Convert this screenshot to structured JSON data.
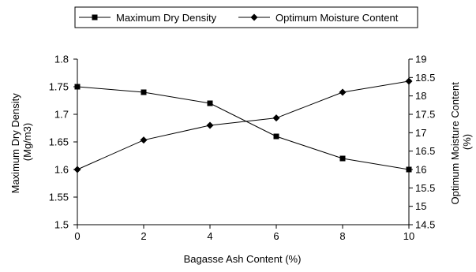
{
  "chart_data": {
    "type": "line",
    "x": [
      0,
      2,
      4,
      6,
      8,
      10
    ],
    "xlabel": "Bagasse Ash Content (%)",
    "xlim": [
      0,
      10
    ],
    "xticks": [
      "0",
      "2",
      "4",
      "6",
      "8",
      "10"
    ],
    "ylabel_left": [
      "Maximum Dry Density",
      "(Mg/m3)"
    ],
    "ylim_left": [
      1.5,
      1.8
    ],
    "yticks_left": [
      "1.5",
      "1.55",
      "1.6",
      "1.65",
      "1.7",
      "1.75",
      "1.8"
    ],
    "ylabel_right": [
      "Optimum Moisture Content",
      "(%)"
    ],
    "ylim_right": [
      14.5,
      19
    ],
    "yticks_right": [
      "14.5",
      "15",
      "15.5",
      "16",
      "16.5",
      "17",
      "17.5",
      "18",
      "18.5",
      "19"
    ],
    "grid": false,
    "legend_position": "top",
    "series": [
      {
        "name": "Maximum Dry Density",
        "axis": "left",
        "marker": "square",
        "color": "#000000",
        "values": [
          1.75,
          1.74,
          1.72,
          1.66,
          1.62,
          1.6
        ]
      },
      {
        "name": "Optimum Moisture Content",
        "axis": "right",
        "marker": "diamond",
        "color": "#000000",
        "values": [
          16.0,
          16.8,
          17.2,
          17.4,
          18.1,
          18.4
        ]
      }
    ]
  }
}
